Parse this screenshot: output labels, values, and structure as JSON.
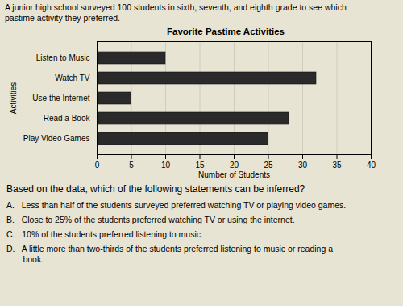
{
  "chart_data": {
    "type": "bar",
    "orientation": "horizontal",
    "title": "Favorite Pastime Activities",
    "subtitle": [
      "A junior high school surveyed 100 students in sixth, seventh, and eighth grade to see which",
      "pastime activity they preferred."
    ],
    "annotations": [
      "Based on the data, which of the following statements can be inferred?",
      "A.   Less than half of the students surveyed preferred watching TV or playing video games.",
      "B.   Close to 25% of the students preferred watching TV or using the internet.",
      "C.   10% of the students preferred listening to music.",
      "D.   A little more than two-thirds of the students preferred listening to music or reading a",
      "       book."
    ],
    "categories": [
      "Listen to Music",
      "Watch TV",
      "Use the Internet",
      "Read a Book",
      "Play Video Games"
    ],
    "values": [
      10,
      32,
      5,
      28,
      25
    ],
    "color": "#2a2a2a",
    "xlabel": "Number of Students",
    "ylabel": "Activities",
    "xlim": [
      0,
      40
    ],
    "xticks": [
      0,
      5,
      10,
      15,
      20,
      25,
      30,
      35,
      40
    ],
    "grid": true
  }
}
